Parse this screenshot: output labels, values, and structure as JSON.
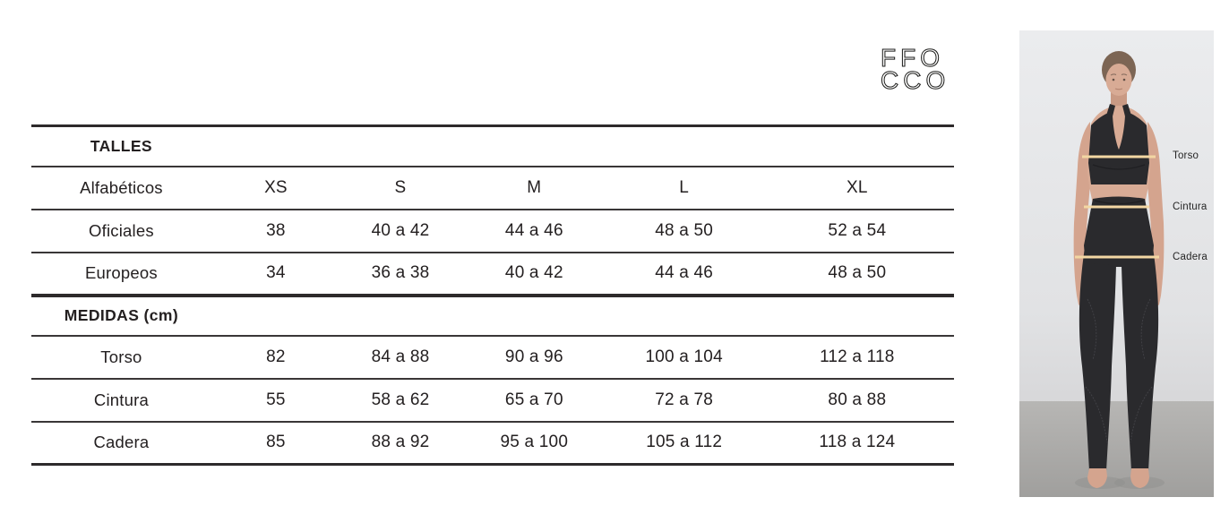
{
  "brand": {
    "logo_line1": "FFO",
    "logo_line2": "CCO"
  },
  "size_chart": {
    "sections": [
      {
        "title": "TALLES",
        "rows": [
          {
            "label": "Alfabéticos",
            "values": [
              "XS",
              "S",
              "M",
              "L",
              "XL"
            ]
          },
          {
            "label": "Oficiales",
            "values": [
              "38",
              "40 a 42",
              "44 a 46",
              "48 a 50",
              "52 a 54"
            ]
          },
          {
            "label": "Europeos",
            "values": [
              "34",
              "36 a 38",
              "40 a 42",
              "44 a 46",
              "48 a 50"
            ]
          }
        ]
      },
      {
        "title": "MEDIDAS (cm)",
        "rows": [
          {
            "label": "Torso",
            "values": [
              "82",
              "84 a 88",
              "90 a 96",
              "100 a 104",
              "112 a 118"
            ]
          },
          {
            "label": "Cintura",
            "values": [
              "55",
              "58 a 62",
              "65 a 70",
              "72 a 78",
              "80 a 88"
            ]
          },
          {
            "label": "Cadera",
            "values": [
              "85",
              "88 a 92",
              "95 a 100",
              "105 a 112",
              "118 a 124"
            ]
          }
        ]
      }
    ]
  },
  "figure": {
    "measure_labels": [
      "Torso",
      "Cintura",
      "Cadera"
    ]
  },
  "colors": {
    "text": "#242021",
    "rule": "#2d2a2b",
    "measure_line": "#f3d7a3",
    "photo_wall": "#e6e7e9",
    "photo_floor": "#acabab",
    "clothing": "#2a2a2d",
    "skin": "#d8ab95"
  }
}
